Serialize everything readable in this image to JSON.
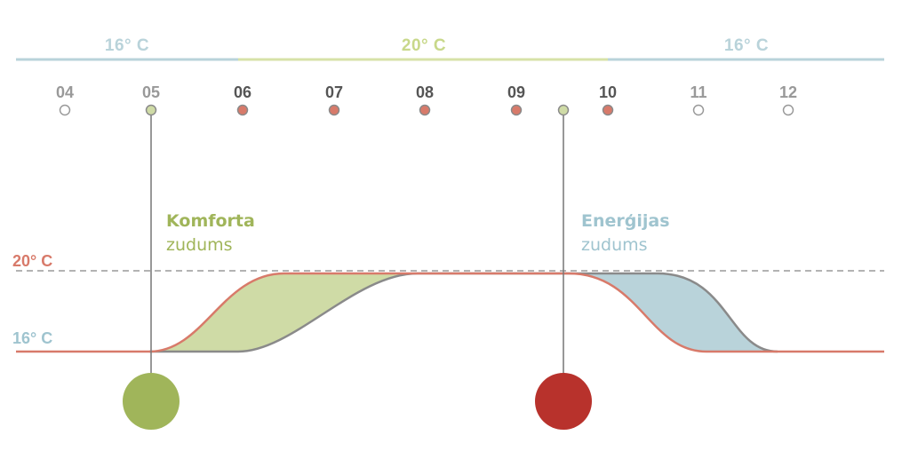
{
  "colors": {
    "green": "#a0b55a",
    "light_green": "#cfdba6",
    "red": "#b8322c",
    "salmon": "#d87a6a",
    "blue": "#9fc4cf",
    "light_blue": "#b9d3da",
    "gray": "#8a8a8a",
    "hour_dim": "#999999",
    "hour_strong": "#555555"
  },
  "bands": [
    {
      "label": "16° C",
      "color": "#b9d3da"
    },
    {
      "label": "20° C",
      "color": "#d7e2a8"
    },
    {
      "label": "16° C",
      "color": "#b9d3da"
    }
  ],
  "hours": [
    {
      "label": "04",
      "style": "dim",
      "dot": "hollow"
    },
    {
      "label": "05",
      "style": "dim",
      "dot": "green"
    },
    {
      "label": "06",
      "style": "strong",
      "dot": "red"
    },
    {
      "label": "07",
      "style": "strong",
      "dot": "red"
    },
    {
      "label": "08",
      "style": "strong",
      "dot": "red"
    },
    {
      "label": "09",
      "style": "strong",
      "dot": "red"
    },
    {
      "label": "10",
      "style": "strong",
      "dot": "red"
    },
    {
      "label": "11",
      "style": "dim",
      "dot": "hollow"
    },
    {
      "label": "12",
      "style": "dim",
      "dot": "hollow"
    }
  ],
  "temps": {
    "high": "20° C",
    "low": "16° C"
  },
  "annotations": {
    "comfort": {
      "title": "Komforta",
      "subtitle": "zudums"
    },
    "energy": {
      "title": "Enerģijas",
      "subtitle": "zudums"
    }
  }
}
